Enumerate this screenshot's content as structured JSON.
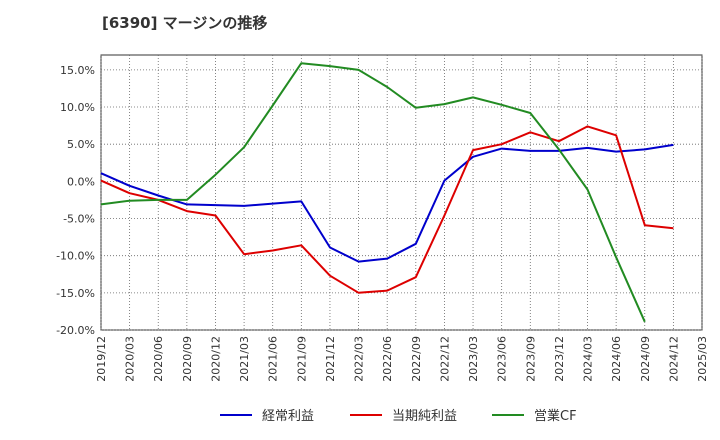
{
  "header": {
    "title": "[6390]  マージンの推移"
  },
  "chart_data": {
    "type": "line",
    "title": "[6390]  マージンの推移",
    "xlabel": "",
    "ylabel": "",
    "ylim": [
      -20,
      17
    ],
    "grid": true,
    "legend_position": "bottom",
    "y_ticks": [
      15,
      10,
      5,
      0,
      -5,
      -10,
      -15,
      -20
    ],
    "y_tick_labels": [
      "15.0%",
      "10.0%",
      "5.0%",
      "0.0%",
      "-5.0%",
      "-10.0%",
      "-15.0%",
      "-20.0%"
    ],
    "x": [
      "2019/12",
      "2020/03",
      "2020/06",
      "2020/09",
      "2020/12",
      "2021/03",
      "2021/06",
      "2021/09",
      "2021/12",
      "2022/03",
      "2022/06",
      "2022/09",
      "2022/12",
      "2023/03",
      "2023/06",
      "2023/09",
      "2023/12",
      "2024/03",
      "2024/06",
      "2024/09",
      "2024/12",
      "2025/03"
    ],
    "series": [
      {
        "name": "経常利益",
        "color": "#0000cc",
        "values": [
          1.1,
          -0.6,
          -1.9,
          -3.1,
          -3.2,
          -3.3,
          -3.0,
          -2.7,
          -8.9,
          -10.8,
          -10.4,
          -8.4,
          0.1,
          3.3,
          4.4,
          4.1,
          4.1,
          4.5,
          4.0,
          4.3,
          4.9,
          null
        ]
      },
      {
        "name": "当期純利益",
        "color": "#dd0000",
        "values": [
          0.1,
          -1.6,
          -2.5,
          -4.0,
          -4.6,
          -9.8,
          -9.3,
          -8.6,
          -12.7,
          -15.0,
          -14.7,
          -12.9,
          -4.6,
          4.2,
          5.0,
          6.6,
          5.4,
          7.4,
          6.2,
          -5.9,
          -6.3,
          null
        ]
      },
      {
        "name": "営業CF",
        "color": "#228B22",
        "values": [
          -3.1,
          -2.6,
          -2.5,
          -2.5,
          0.9,
          4.6,
          10.2,
          15.9,
          15.5,
          15.0,
          12.7,
          9.9,
          10.4,
          11.3,
          10.3,
          9.2,
          4.3,
          -1.1,
          -10.2,
          -18.9,
          null,
          null
        ]
      }
    ]
  }
}
